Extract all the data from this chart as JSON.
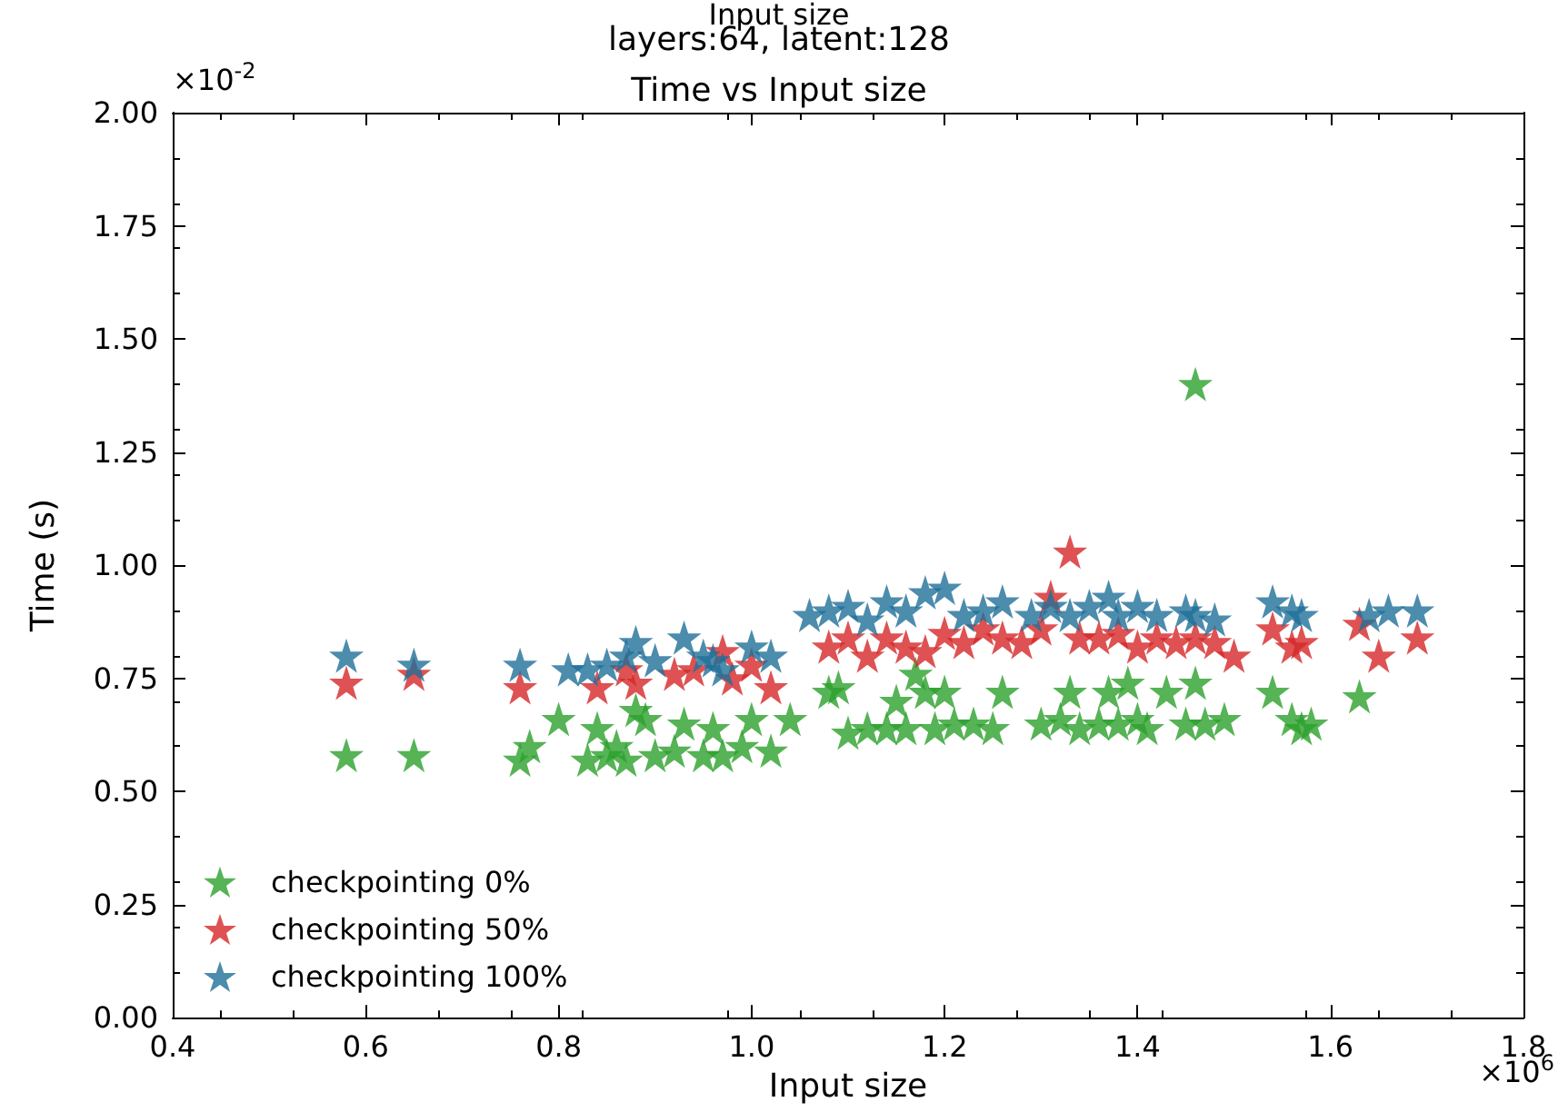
{
  "chart_data": {
    "type": "scatter",
    "title": "Time vs Input size",
    "subtitle": "layers:64, latent:128",
    "xlabel": "Input size",
    "ylabel": "Time (s)",
    "annotations": [
      "Input size",
      "×10$^{-2}$",
      "×10$^{6}$"
    ],
    "xlim": [
      0.4,
      1.8
    ],
    "xticks": [
      0.4,
      0.6,
      0.8,
      {
        "value": 1,
        "label": "1.0"
      },
      1.2,
      1.4,
      1.6,
      1.8
    ],
    "ylim": [
      0,
      2
    ],
    "yticks": [
      {
        "value": 0,
        "label": "0.00"
      },
      {
        "value": 0.25,
        "label": "0.25"
      },
      {
        "value": 0.5,
        "label": "0.50"
      },
      {
        "value": 0.75,
        "label": "0.75"
      },
      {
        "value": 1,
        "label": "1.00"
      },
      {
        "value": 1.25,
        "label": "1.25"
      },
      {
        "value": 1.5,
        "label": "1.50"
      },
      {
        "value": 1.75,
        "label": "1.75"
      },
      {
        "value": 2,
        "label": "2.00"
      }
    ],
    "marker": "star",
    "legend": "bottom left",
    "grid": false,
    "series": [
      {
        "name": "checkpointing 0%",
        "color": "#2ca02c",
        "x": [
          0.58,
          0.65,
          0.76,
          0.77,
          0.8,
          0.83,
          0.84,
          0.85,
          0.86,
          0.87,
          0.88,
          0.89,
          0.9,
          0.92,
          0.93,
          0.95,
          0.96,
          0.97,
          0.99,
          1.0,
          1.02,
          1.04,
          1.08,
          1.09,
          1.1,
          1.12,
          1.14,
          1.15,
          1.16,
          1.17,
          1.18,
          1.19,
          1.2,
          1.21,
          1.23,
          1.25,
          1.26,
          1.3,
          1.32,
          1.33,
          1.34,
          1.36,
          1.37,
          1.38,
          1.39,
          1.4,
          1.41,
          1.43,
          1.45,
          1.46,
          1.46,
          1.47,
          1.49,
          1.54,
          1.56,
          1.57,
          1.58,
          1.63
        ],
        "values": [
          0.58,
          0.58,
          0.57,
          0.6,
          0.66,
          0.57,
          0.64,
          0.58,
          0.6,
          0.57,
          0.68,
          0.66,
          0.58,
          0.59,
          0.65,
          0.58,
          0.64,
          0.58,
          0.6,
          0.66,
          0.59,
          0.66,
          0.72,
          0.73,
          0.63,
          0.64,
          0.64,
          0.7,
          0.64,
          0.76,
          0.72,
          0.64,
          0.72,
          0.65,
          0.65,
          0.64,
          0.72,
          0.65,
          0.66,
          0.72,
          0.64,
          0.65,
          0.72,
          0.65,
          0.74,
          0.66,
          0.64,
          0.72,
          0.65,
          0.74,
          1.4,
          0.65,
          0.66,
          0.72,
          0.66,
          0.64,
          0.65,
          0.71
        ]
      },
      {
        "name": "checkpointing 50%",
        "color": "#d62728",
        "x": [
          0.58,
          0.65,
          0.76,
          0.84,
          0.85,
          0.87,
          0.88,
          0.9,
          0.92,
          0.94,
          0.96,
          0.97,
          0.98,
          1.0,
          1.02,
          1.08,
          1.1,
          1.12,
          1.14,
          1.16,
          1.18,
          1.2,
          1.22,
          1.24,
          1.26,
          1.28,
          1.3,
          1.31,
          1.33,
          1.34,
          1.36,
          1.38,
          1.4,
          1.42,
          1.44,
          1.46,
          1.48,
          1.5,
          1.54,
          1.56,
          1.57,
          1.63,
          1.65,
          1.69
        ],
        "values": [
          0.74,
          0.76,
          0.73,
          0.73,
          null,
          0.77,
          0.74,
          null,
          0.76,
          0.77,
          null,
          0.81,
          0.75,
          0.78,
          0.73,
          0.82,
          0.84,
          0.8,
          0.84,
          0.82,
          0.81,
          0.85,
          0.83,
          0.86,
          0.84,
          0.83,
          0.86,
          0.93,
          1.03,
          0.84,
          0.84,
          0.85,
          0.82,
          0.84,
          0.83,
          0.84,
          0.83,
          0.8,
          0.86,
          0.82,
          0.83,
          0.87,
          0.8,
          0.84
        ]
      },
      {
        "name": "checkpointing 100%",
        "color": "#1f6f99",
        "x": [
          0.58,
          0.65,
          0.76,
          0.81,
          0.83,
          0.85,
          0.87,
          0.88,
          0.9,
          0.93,
          0.95,
          0.96,
          0.97,
          1.0,
          1.02,
          1.06,
          1.08,
          1.1,
          1.12,
          1.14,
          1.16,
          1.18,
          1.2,
          1.22,
          1.24,
          1.26,
          1.29,
          1.31,
          1.33,
          1.35,
          1.37,
          1.38,
          1.4,
          1.42,
          1.45,
          1.46,
          1.48,
          1.54,
          1.56,
          1.57,
          1.64,
          1.66,
          1.69
        ],
        "values": [
          0.8,
          0.78,
          0.78,
          0.77,
          0.77,
          0.78,
          0.8,
          0.83,
          0.79,
          0.84,
          0.8,
          0.79,
          0.77,
          0.82,
          0.8,
          0.89,
          0.9,
          0.91,
          0.88,
          0.92,
          0.9,
          0.94,
          0.95,
          0.89,
          0.9,
          0.92,
          0.89,
          0.91,
          0.89,
          0.91,
          0.93,
          0.89,
          0.91,
          0.89,
          0.9,
          0.89,
          0.88,
          0.92,
          0.9,
          0.89,
          0.89,
          0.9,
          0.9
        ]
      }
    ]
  }
}
